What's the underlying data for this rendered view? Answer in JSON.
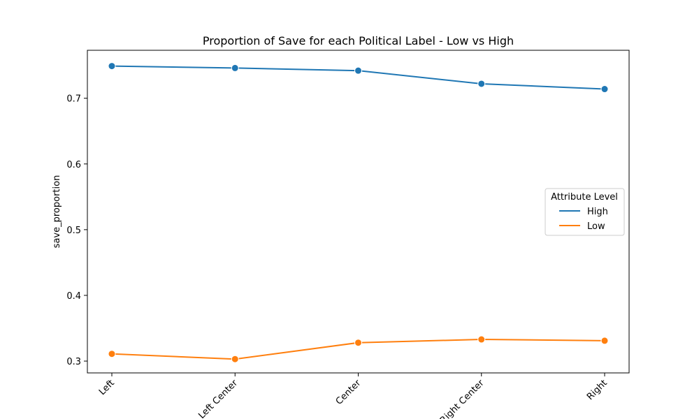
{
  "chart_data": {
    "type": "line",
    "title": "Proportion of Save for each Political Label - Low vs High",
    "xlabel": "",
    "ylabel": "save_proportion",
    "categories": [
      "Left",
      "Left Center",
      "Center",
      "Right Center",
      "Right"
    ],
    "y_ticks": [
      "0.3",
      "0.4",
      "0.5",
      "0.6",
      "0.7"
    ],
    "ylim": [
      0.282,
      0.773
    ],
    "grid": false,
    "legend": {
      "title": "Attribute Level",
      "placement": "center-right"
    },
    "series": [
      {
        "name": "High",
        "color": "#1f77b4",
        "values": [
          0.749,
          0.746,
          0.742,
          0.722,
          0.714
        ]
      },
      {
        "name": "Low",
        "color": "#ff7f0e",
        "values": [
          0.311,
          0.303,
          0.328,
          0.333,
          0.331
        ]
      }
    ]
  }
}
